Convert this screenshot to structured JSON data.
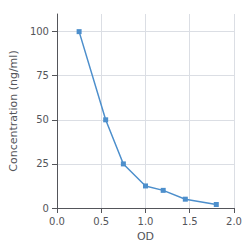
{
  "chart_data": {
    "type": "line",
    "x": [
      0.25,
      0.55,
      0.75,
      1.0,
      1.2,
      1.45,
      1.8
    ],
    "values": [
      100,
      50,
      25,
      12.5,
      10,
      5,
      2
    ],
    "color": "#4d8fcc",
    "marker": "square",
    "xlabel": "OD",
    "ylabel": "Concentration (ng/ml)",
    "xlim": [
      0.0,
      2.0
    ],
    "ylim": [
      0,
      110
    ],
    "xticks": [
      {
        "value": 0.0,
        "label": "0.0"
      },
      0.5,
      {
        "value": 1.0,
        "label": "1.0"
      },
      1.5,
      {
        "value": 2.0,
        "label": "2.0"
      }
    ],
    "yticks": [
      0,
      25,
      50,
      75,
      100
    ],
    "grid": true
  }
}
